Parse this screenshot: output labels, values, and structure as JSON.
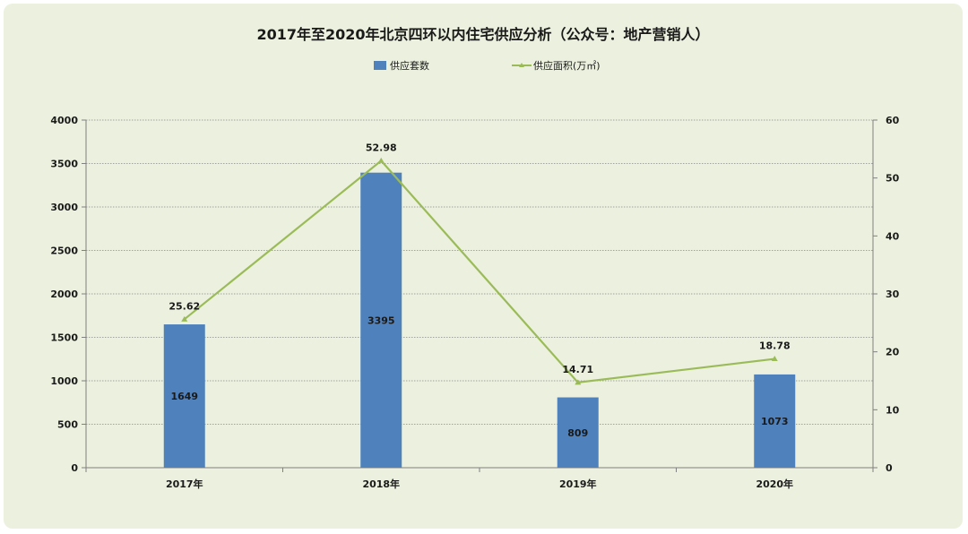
{
  "chart_data": {
    "type": "bar",
    "title": "2017年至2020年北京四环以内住宅供应分析（公众号：地产营销人）",
    "categories": [
      "2017年",
      "2018年",
      "2019年",
      "2020年"
    ],
    "series": [
      {
        "name": "供应套数",
        "type": "bar",
        "axis": "left",
        "color": "#4f81bd",
        "values": [
          1649,
          3395,
          809,
          1073
        ]
      },
      {
        "name": "供应面积(万㎡)",
        "type": "line",
        "axis": "right",
        "color": "#9bbb59",
        "values": [
          25.62,
          52.98,
          14.71,
          18.78
        ]
      }
    ],
    "y_left": {
      "min": 0,
      "max": 4000,
      "ticks": [
        "0",
        "500",
        "1000",
        "1500",
        "2000",
        "2500",
        "3000",
        "3500",
        "4000"
      ]
    },
    "y_right": {
      "min": 0,
      "max": 60,
      "ticks": [
        "0",
        "10",
        "20",
        "30",
        "40",
        "50",
        "60"
      ]
    },
    "grid": true,
    "legend_position": "top",
    "background_color": "#ebf1de"
  }
}
